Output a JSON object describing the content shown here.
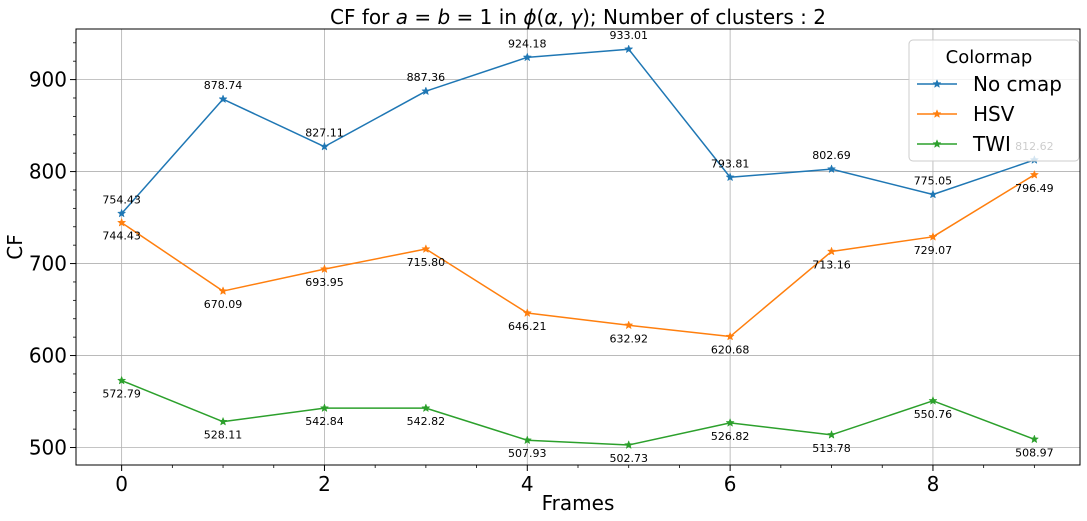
{
  "chart_data": {
    "type": "line",
    "title": "CF for $a=b=1$ in $\\phi(\\alpha,\\gamma)$; Number of clusters : 2",
    "title_parts": {
      "prefix": "CF for ",
      "a": "a",
      "eq1": " = ",
      "b": "b",
      "eq2": " = 1 in ",
      "phi": "ϕ",
      "open": "(",
      "alpha": "α",
      "comma": ", ",
      "gamma": "γ",
      "suffix": "); Number of clusters : 2"
    },
    "xlabel": "Frames",
    "ylabel": "CF",
    "x": [
      0,
      1,
      2,
      3,
      4,
      5,
      6,
      7,
      8,
      9
    ],
    "xlim": [
      -0.45,
      9.45
    ],
    "ylim": [
      481,
      955
    ],
    "xticks": [
      0,
      2,
      4,
      6,
      8
    ],
    "yticks": [
      500,
      600,
      700,
      800,
      900
    ],
    "grid": true,
    "legend": {
      "title": "Colormap",
      "placement": "top-right"
    },
    "series": [
      {
        "name": "No cmap",
        "color": "#1f77b4",
        "marker": "star",
        "values": [
          754.43,
          878.74,
          827.11,
          887.36,
          924.18,
          933.01,
          793.81,
          802.69,
          775.05,
          812.62
        ],
        "labels": [
          "754.43",
          "878.74",
          "827.11",
          "887.36",
          "924.18",
          "933.01",
          "793.81",
          "802.69",
          "775.05",
          "812.62"
        ],
        "label_position": "above"
      },
      {
        "name": "HSV",
        "color": "#ff7f0e",
        "marker": "star",
        "values": [
          744.43,
          670.09,
          693.95,
          715.8,
          646.21,
          632.92,
          620.68,
          713.16,
          729.07,
          796.49
        ],
        "labels": [
          "744.43",
          "670.09",
          "693.95",
          "715.80",
          "646.21",
          "632.92",
          "620.68",
          "713.16",
          "729.07",
          "796.49"
        ],
        "label_position": "below"
      },
      {
        "name": "TWI",
        "color": "#2ca02c",
        "marker": "star",
        "values": [
          572.79,
          528.11,
          542.84,
          542.82,
          507.93,
          502.73,
          526.82,
          513.78,
          550.76,
          508.97
        ],
        "labels": [
          "572.79",
          "528.11",
          "542.84",
          "542.82",
          "507.93",
          "502.73",
          "526.82",
          "513.78",
          "550.76",
          "508.97"
        ],
        "label_position": "below"
      }
    ]
  }
}
